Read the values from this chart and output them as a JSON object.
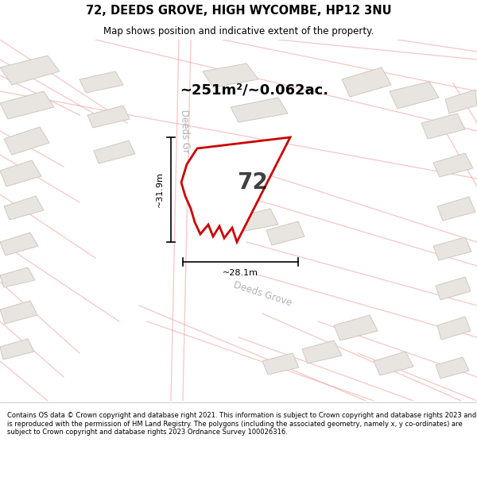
{
  "title_line1": "72, DEEDS GROVE, HIGH WYCOMBE, HP12 3NU",
  "title_line2": "Map shows position and indicative extent of the property.",
  "area_text": "~251m²/~0.062ac.",
  "label_72": "72",
  "dim_width": "~28.1m",
  "dim_height": "~31.9m",
  "footer_text": "Contains OS data © Crown copyright and database right 2021. This information is subject to Crown copyright and database rights 2023 and is reproduced with the permission of HM Land Registry. The polygons (including the associated geometry, namely x, y co-ordinates) are subject to Crown copyright and database rights 2023 Ordnance Survey 100026316.",
  "bg_color": "#f7f5f2",
  "map_bg": "#f7f5f2",
  "footer_bg": "#ffffff",
  "header_bg": "#ffffff",
  "plot_color_edge": "#cc0000",
  "bldg_fill": "#e8e5e0",
  "bldg_edge": "#d0c8c0",
  "road_line": "#f0a0a0",
  "text_color": "#000000",
  "street_label_color": "#aaaaaa",
  "dim_color": "#000000"
}
